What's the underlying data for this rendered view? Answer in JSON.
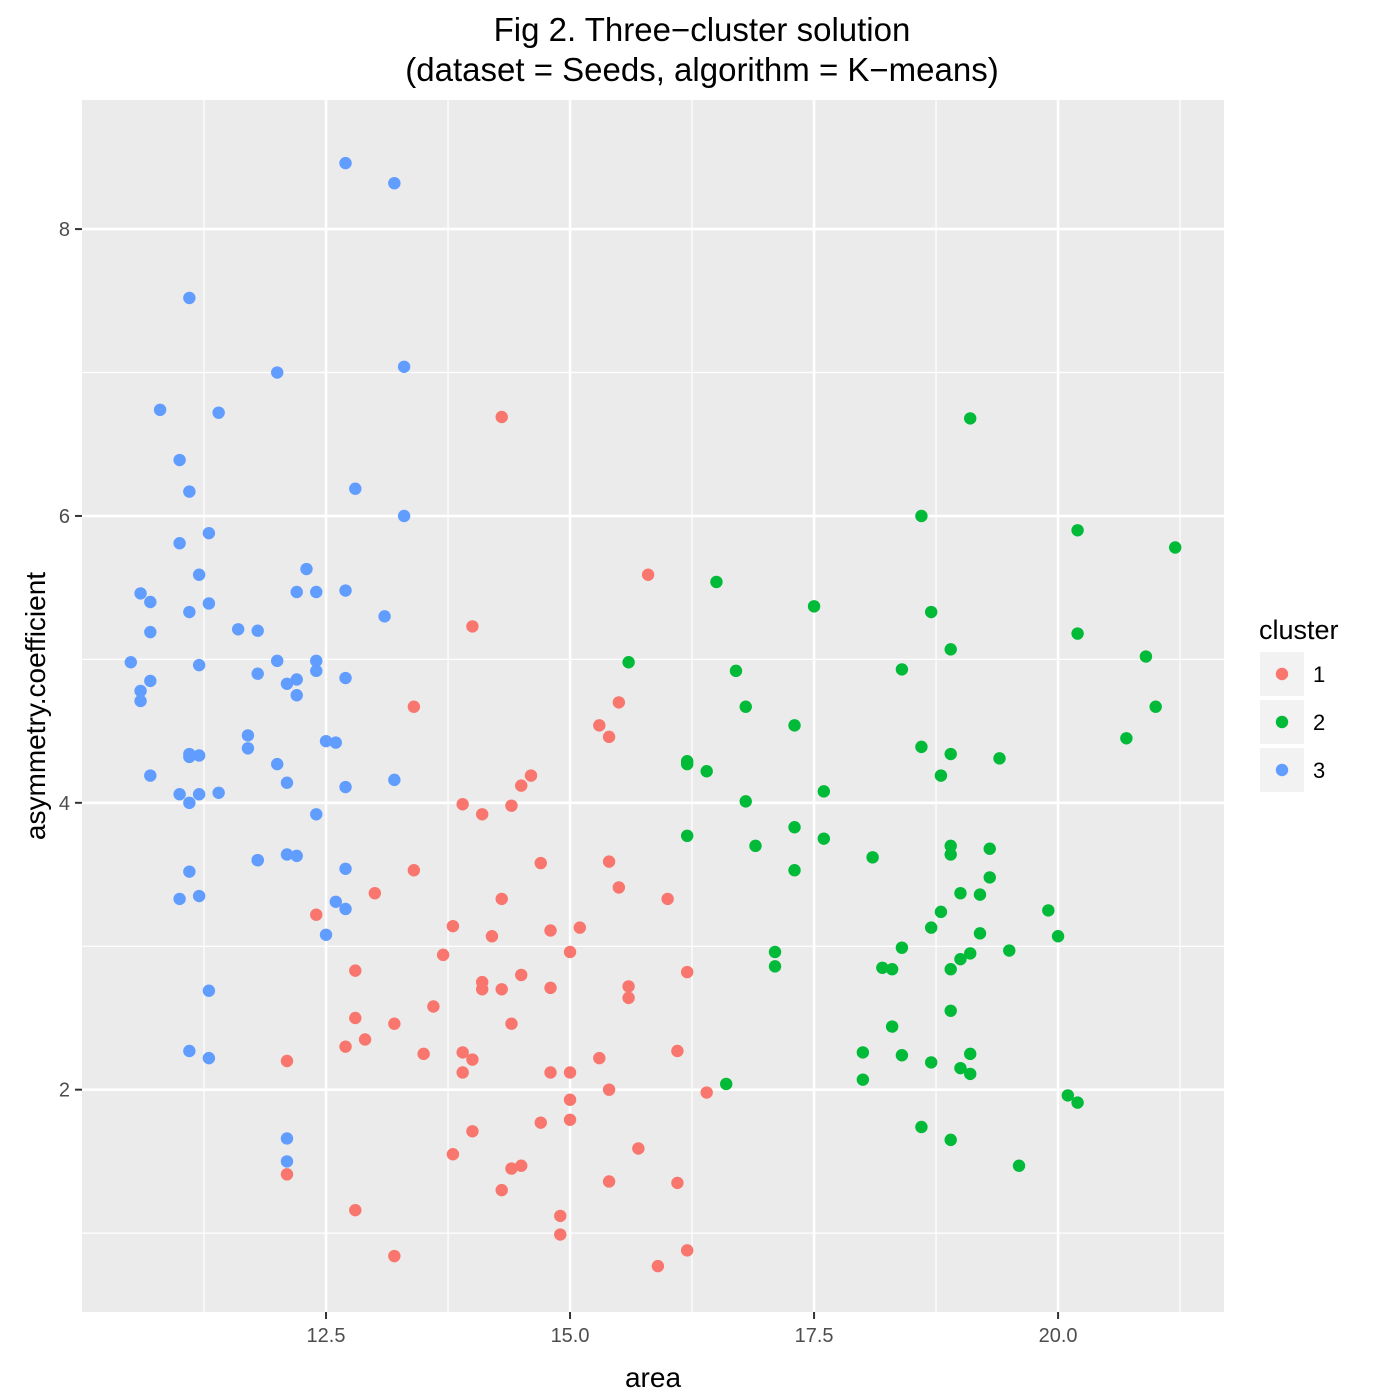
{
  "chart_data": {
    "type": "scatter",
    "title": "Fig 2. Three−cluster solution",
    "subtitle": "(dataset = Seeds, algorithm = K−means)",
    "xlabel": "area",
    "ylabel": "asymmetry.coefficient",
    "xlim": [
      10.0,
      21.7
    ],
    "ylim": [
      0.45,
      8.9
    ],
    "x_ticks": [
      12.5,
      15.0,
      17.5,
      20.0
    ],
    "x_tick_labels": [
      "12.5",
      "15.0",
      "17.5",
      "20.0"
    ],
    "y_ticks": [
      2,
      4,
      6,
      8
    ],
    "y_tick_labels": [
      "2",
      "4",
      "6",
      "8"
    ],
    "grid": true,
    "legend": {
      "title": "cluster",
      "position": "right"
    },
    "colors": {
      "1": "#F8766D",
      "2": "#00BA38",
      "3": "#619CFF",
      "panel": "#EBEBEB",
      "grid": "#FFFFFF"
    },
    "series": [
      {
        "name": "1",
        "points": [
          [
            14.3,
            6.69
          ],
          [
            15.8,
            5.59
          ],
          [
            14.0,
            5.23
          ],
          [
            15.5,
            4.7
          ],
          [
            13.4,
            4.67
          ],
          [
            15.3,
            4.54
          ],
          [
            15.4,
            4.46
          ],
          [
            14.6,
            4.19
          ],
          [
            14.5,
            4.12
          ],
          [
            13.9,
            3.99
          ],
          [
            14.1,
            3.92
          ],
          [
            14.4,
            3.98
          ],
          [
            14.7,
            3.58
          ],
          [
            15.4,
            3.59
          ],
          [
            13.4,
            3.53
          ],
          [
            15.5,
            3.41
          ],
          [
            13.0,
            3.37
          ],
          [
            14.3,
            3.33
          ],
          [
            16.0,
            3.33
          ],
          [
            12.4,
            3.22
          ],
          [
            13.8,
            3.14
          ],
          [
            14.8,
            3.11
          ],
          [
            15.1,
            3.13
          ],
          [
            14.2,
            3.07
          ],
          [
            13.7,
            2.94
          ],
          [
            15.0,
            2.96
          ],
          [
            12.8,
            2.83
          ],
          [
            14.5,
            2.8
          ],
          [
            16.2,
            2.82
          ],
          [
            14.1,
            2.75
          ],
          [
            14.1,
            2.7
          ],
          [
            14.3,
            2.7
          ],
          [
            14.8,
            2.71
          ],
          [
            15.6,
            2.72
          ],
          [
            15.6,
            2.64
          ],
          [
            13.6,
            2.58
          ],
          [
            12.8,
            2.5
          ],
          [
            13.2,
            2.46
          ],
          [
            14.4,
            2.46
          ],
          [
            12.9,
            2.35
          ],
          [
            12.7,
            2.3
          ],
          [
            13.5,
            2.25
          ],
          [
            13.9,
            2.26
          ],
          [
            14.0,
            2.21
          ],
          [
            12.1,
            2.2
          ],
          [
            15.3,
            2.22
          ],
          [
            16.1,
            2.27
          ],
          [
            13.9,
            2.12
          ],
          [
            14.8,
            2.12
          ],
          [
            15.0,
            2.12
          ],
          [
            15.4,
            2.0
          ],
          [
            16.4,
            1.98
          ],
          [
            15.0,
            1.93
          ],
          [
            15.0,
            1.79
          ],
          [
            14.7,
            1.77
          ],
          [
            14.0,
            1.71
          ],
          [
            15.7,
            1.59
          ],
          [
            13.8,
            1.55
          ],
          [
            14.5,
            1.47
          ],
          [
            14.4,
            1.45
          ],
          [
            12.1,
            1.41
          ],
          [
            15.4,
            1.36
          ],
          [
            16.1,
            1.35
          ],
          [
            14.3,
            1.3
          ],
          [
            12.8,
            1.16
          ],
          [
            14.9,
            1.12
          ],
          [
            14.9,
            0.99
          ],
          [
            13.2,
            0.84
          ],
          [
            16.2,
            0.88
          ],
          [
            15.9,
            0.77
          ]
        ]
      },
      {
        "name": "2",
        "points": [
          [
            19.1,
            6.68
          ],
          [
            18.6,
            6.0
          ],
          [
            20.2,
            5.9
          ],
          [
            21.2,
            5.78
          ],
          [
            16.5,
            5.54
          ],
          [
            17.5,
            5.37
          ],
          [
            18.7,
            5.33
          ],
          [
            20.2,
            5.18
          ],
          [
            18.9,
            5.07
          ],
          [
            20.9,
            5.02
          ],
          [
            15.6,
            4.98
          ],
          [
            18.4,
            4.93
          ],
          [
            16.7,
            4.92
          ],
          [
            16.8,
            4.67
          ],
          [
            21.0,
            4.67
          ],
          [
            17.3,
            4.54
          ],
          [
            20.7,
            4.45
          ],
          [
            18.6,
            4.39
          ],
          [
            18.9,
            4.34
          ],
          [
            19.4,
            4.31
          ],
          [
            16.2,
            4.29
          ],
          [
            16.2,
            4.27
          ],
          [
            16.4,
            4.22
          ],
          [
            18.8,
            4.19
          ],
          [
            17.6,
            4.08
          ],
          [
            16.8,
            4.01
          ],
          [
            17.3,
            3.83
          ],
          [
            16.2,
            3.77
          ],
          [
            17.6,
            3.75
          ],
          [
            16.9,
            3.7
          ],
          [
            18.9,
            3.7
          ],
          [
            19.3,
            3.68
          ],
          [
            18.9,
            3.64
          ],
          [
            18.1,
            3.62
          ],
          [
            17.3,
            3.53
          ],
          [
            19.3,
            3.48
          ],
          [
            19.0,
            3.37
          ],
          [
            19.2,
            3.36
          ],
          [
            19.9,
            3.25
          ],
          [
            18.8,
            3.24
          ],
          [
            18.7,
            3.13
          ],
          [
            19.2,
            3.09
          ],
          [
            20.0,
            3.07
          ],
          [
            18.4,
            2.99
          ],
          [
            17.1,
            2.96
          ],
          [
            19.5,
            2.97
          ],
          [
            19.1,
            2.95
          ],
          [
            19.0,
            2.91
          ],
          [
            17.1,
            2.86
          ],
          [
            18.2,
            2.85
          ],
          [
            18.3,
            2.84
          ],
          [
            18.9,
            2.84
          ],
          [
            18.9,
            2.55
          ],
          [
            18.3,
            2.44
          ],
          [
            18.0,
            2.26
          ],
          [
            19.1,
            2.25
          ],
          [
            18.4,
            2.24
          ],
          [
            18.7,
            2.19
          ],
          [
            19.0,
            2.15
          ],
          [
            19.1,
            2.11
          ],
          [
            18.0,
            2.07
          ],
          [
            16.6,
            2.04
          ],
          [
            20.1,
            1.96
          ],
          [
            20.2,
            1.91
          ],
          [
            18.6,
            1.74
          ],
          [
            18.9,
            1.65
          ],
          [
            19.6,
            1.47
          ]
        ]
      },
      {
        "name": "3",
        "points": [
          [
            12.7,
            8.46
          ],
          [
            13.2,
            8.32
          ],
          [
            11.1,
            7.52
          ],
          [
            13.3,
            7.04
          ],
          [
            12.0,
            7.0
          ],
          [
            10.8,
            6.74
          ],
          [
            11.4,
            6.72
          ],
          [
            11.0,
            6.39
          ],
          [
            12.8,
            6.19
          ],
          [
            11.1,
            6.17
          ],
          [
            13.3,
            6.0
          ],
          [
            11.3,
            5.88
          ],
          [
            11.0,
            5.81
          ],
          [
            12.3,
            5.63
          ],
          [
            11.2,
            5.59
          ],
          [
            12.2,
            5.47
          ],
          [
            12.4,
            5.47
          ],
          [
            10.6,
            5.46
          ],
          [
            12.7,
            5.48
          ],
          [
            10.7,
            5.4
          ],
          [
            11.3,
            5.39
          ],
          [
            11.1,
            5.33
          ],
          [
            13.1,
            5.3
          ],
          [
            11.6,
            5.21
          ],
          [
            11.8,
            5.2
          ],
          [
            10.7,
            5.19
          ],
          [
            12.0,
            4.99
          ],
          [
            12.4,
            4.99
          ],
          [
            10.5,
            4.98
          ],
          [
            11.2,
            4.96
          ],
          [
            12.4,
            4.92
          ],
          [
            11.8,
            4.9
          ],
          [
            12.2,
            4.86
          ],
          [
            12.7,
            4.87
          ],
          [
            10.7,
            4.85
          ],
          [
            12.1,
            4.83
          ],
          [
            10.6,
            4.78
          ],
          [
            12.2,
            4.75
          ],
          [
            10.6,
            4.71
          ],
          [
            11.7,
            4.47
          ],
          [
            12.5,
            4.43
          ],
          [
            12.6,
            4.42
          ],
          [
            11.7,
            4.38
          ],
          [
            11.1,
            4.34
          ],
          [
            11.2,
            4.33
          ],
          [
            11.1,
            4.32
          ],
          [
            12.0,
            4.27
          ],
          [
            10.7,
            4.19
          ],
          [
            13.2,
            4.16
          ],
          [
            12.1,
            4.14
          ],
          [
            12.7,
            4.11
          ],
          [
            11.0,
            4.06
          ],
          [
            11.2,
            4.06
          ],
          [
            11.4,
            4.07
          ],
          [
            11.1,
            4.0
          ],
          [
            12.4,
            3.92
          ],
          [
            12.1,
            3.64
          ],
          [
            12.2,
            3.63
          ],
          [
            11.8,
            3.6
          ],
          [
            11.8,
            3.6
          ],
          [
            12.7,
            3.54
          ],
          [
            11.1,
            3.52
          ],
          [
            11.2,
            3.35
          ],
          [
            11.0,
            3.33
          ],
          [
            12.6,
            3.31
          ],
          [
            12.7,
            3.26
          ],
          [
            12.5,
            3.08
          ],
          [
            11.3,
            2.69
          ],
          [
            11.1,
            2.27
          ],
          [
            11.3,
            2.22
          ],
          [
            12.1,
            1.66
          ],
          [
            12.1,
            1.5
          ]
        ]
      }
    ]
  }
}
